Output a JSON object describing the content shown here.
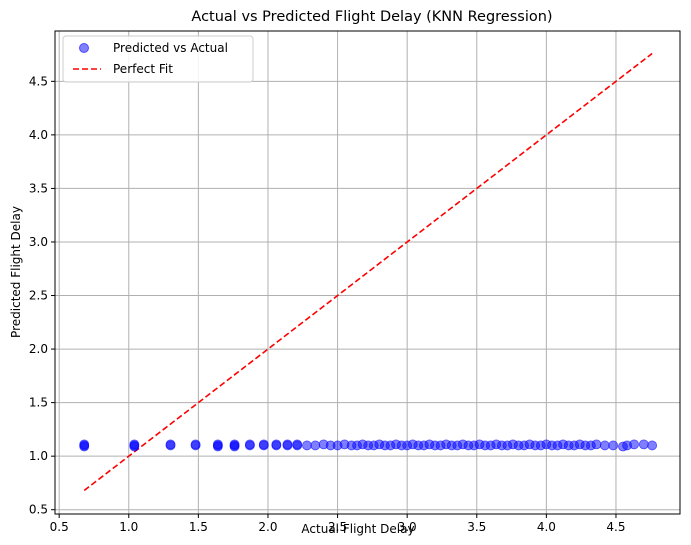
{
  "chart_data": {
    "type": "scatter",
    "title": "Actual vs Predicted Flight Delay (KNN Regression)",
    "xlabel": "Actual Flight Delay",
    "ylabel": "Predicted Flight Delay",
    "xlim": [
      0.47,
      4.96
    ],
    "ylim": [
      0.46,
      4.97
    ],
    "xticks": [
      "0.5",
      "1.0",
      "1.5",
      "2.0",
      "2.5",
      "3.0",
      "3.5",
      "4.0",
      "4.5"
    ],
    "yticks": [
      "0.5",
      "1.0",
      "1.5",
      "2.0",
      "2.5",
      "3.0",
      "3.5",
      "4.0",
      "4.5"
    ],
    "grid": true,
    "legend_position": "top-left",
    "series": [
      {
        "name": "Predicted vs Actual",
        "kind": "scatter",
        "color": "#0000ff",
        "x": [
          0.68,
          0.68,
          0.68,
          1.04,
          1.04,
          1.04,
          1.3,
          1.3,
          1.48,
          1.48,
          1.64,
          1.64,
          1.64,
          1.76,
          1.76,
          1.76,
          1.87,
          1.87,
          1.97,
          1.97,
          2.06,
          2.06,
          2.14,
          2.14,
          2.21,
          2.21,
          2.28,
          2.34,
          2.4,
          2.45,
          2.5,
          2.55,
          2.6,
          2.64,
          2.68,
          2.72,
          2.76,
          2.8,
          2.84,
          2.88,
          2.92,
          2.96,
          3.0,
          3.04,
          3.08,
          3.12,
          3.16,
          3.2,
          3.24,
          3.28,
          3.32,
          3.36,
          3.4,
          3.44,
          3.48,
          3.52,
          3.56,
          3.6,
          3.64,
          3.68,
          3.72,
          3.76,
          3.8,
          3.84,
          3.88,
          3.92,
          3.96,
          4.0,
          4.04,
          4.08,
          4.12,
          4.16,
          4.2,
          4.24,
          4.28,
          4.32,
          4.36,
          4.42,
          4.48,
          4.55,
          4.58,
          4.63,
          4.7,
          4.76
        ],
        "y": [
          1.09,
          1.1,
          1.11,
          1.09,
          1.1,
          1.11,
          1.1,
          1.11,
          1.1,
          1.11,
          1.09,
          1.1,
          1.11,
          1.09,
          1.1,
          1.11,
          1.1,
          1.11,
          1.1,
          1.11,
          1.1,
          1.11,
          1.1,
          1.11,
          1.1,
          1.11,
          1.1,
          1.1,
          1.11,
          1.1,
          1.1,
          1.11,
          1.1,
          1.1,
          1.11,
          1.1,
          1.1,
          1.11,
          1.1,
          1.1,
          1.11,
          1.1,
          1.1,
          1.11,
          1.1,
          1.1,
          1.11,
          1.1,
          1.1,
          1.11,
          1.1,
          1.1,
          1.11,
          1.1,
          1.1,
          1.11,
          1.1,
          1.1,
          1.11,
          1.1,
          1.1,
          1.11,
          1.1,
          1.1,
          1.11,
          1.1,
          1.1,
          1.11,
          1.1,
          1.1,
          1.11,
          1.1,
          1.1,
          1.11,
          1.1,
          1.1,
          1.11,
          1.1,
          1.1,
          1.09,
          1.1,
          1.11,
          1.11,
          1.1
        ]
      },
      {
        "name": "Perfect Fit",
        "kind": "line",
        "style": "dashed",
        "color": "#ff0000",
        "x": [
          0.68,
          4.76
        ],
        "y": [
          0.68,
          4.76
        ]
      }
    ]
  }
}
